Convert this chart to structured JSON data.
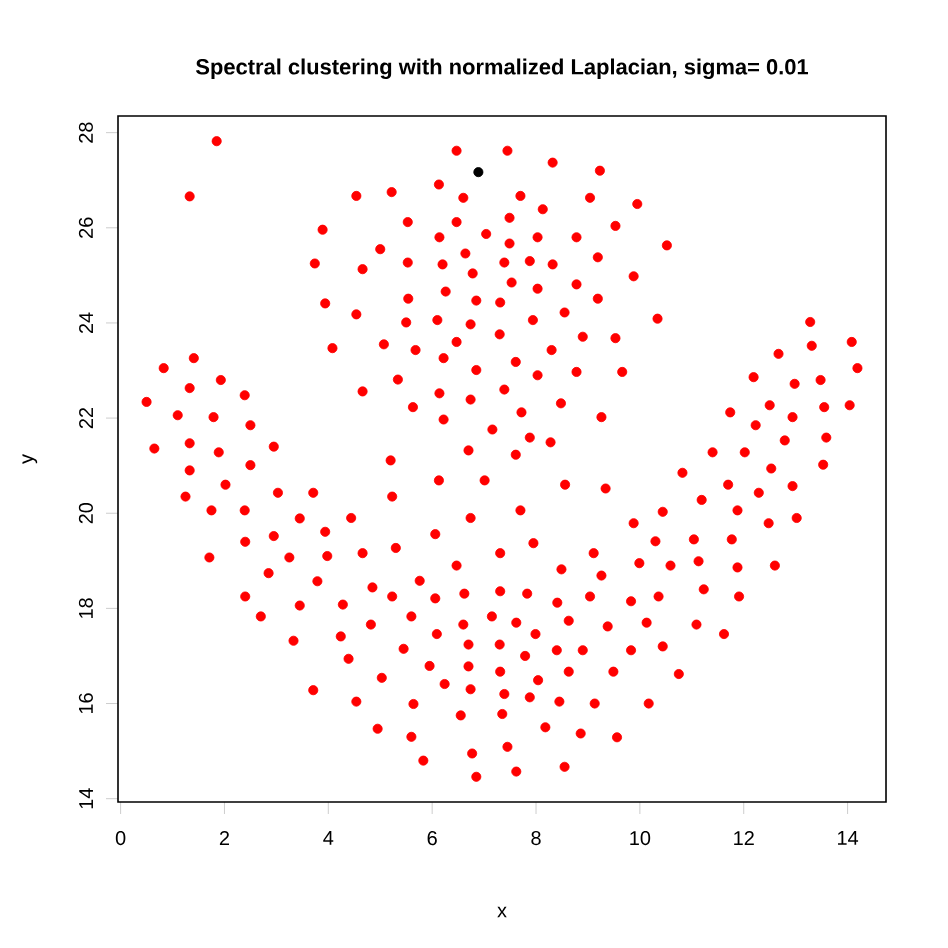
{
  "chart_data": {
    "type": "scatter",
    "title": "Spectral clustering with normalized Laplacian, sigma= 0.01",
    "xlabel": "x",
    "ylabel": "y",
    "xlim": [
      -0.05,
      14.74
    ],
    "ylim": [
      13.93,
      28.35
    ],
    "xticks": [
      0,
      2,
      4,
      6,
      8,
      10,
      12,
      14
    ],
    "yticks": [
      14,
      16,
      18,
      20,
      22,
      24,
      26,
      28
    ],
    "marker": "circle",
    "series": [
      {
        "color": "#ff0000",
        "x": [
          1.85,
          1.33,
          3.89,
          3.74,
          3.94,
          4.08,
          0.83,
          1.41,
          1.93,
          1.33,
          2.39,
          0.5,
          1.1,
          1.79,
          2.5,
          0.65,
          1.33,
          1.89,
          2.95,
          1.33,
          2.5,
          1.25,
          2.02,
          3.03,
          3.71,
          1.75,
          2.39,
          3.45,
          3.94,
          2.4,
          2.95,
          1.71,
          3.25,
          3.98,
          2.85,
          3.79,
          2.4,
          3.45,
          2.7,
          3.33,
          3.71,
          6.47,
          7.45,
          8.32,
          9.23,
          4.54,
          5.22,
          6.13,
          6.6,
          7.7,
          8.13,
          9.04,
          5.53,
          6.47,
          7.49,
          9.53,
          6.14,
          7.04,
          7.49,
          8.03,
          8.78,
          5.0,
          6.64,
          4.66,
          5.53,
          6.2,
          6.78,
          7.39,
          7.88,
          8.32,
          9.19,
          7.53,
          6.26,
          8.03,
          8.78,
          5.54,
          6.85,
          7.31,
          9.19,
          4.54,
          8.55,
          5.5,
          6.1,
          6.74,
          7.94,
          5.07,
          5.68,
          6.47,
          7.3,
          8.9,
          9.53,
          6.22,
          8.3,
          7.61,
          6.85,
          8.03,
          8.78,
          9.66,
          5.34,
          4.66,
          6.14,
          6.74,
          7.39,
          8.48,
          5.63,
          6.22,
          7.72,
          9.26,
          7.16,
          7.88,
          8.28,
          6.7,
          7.61,
          5.2,
          9.95,
          10.52,
          9.88,
          10.34,
          13.28,
          14.08,
          12.67,
          13.31,
          14.19,
          12.19,
          12.98,
          13.48,
          11.74,
          12.5,
          12.94,
          13.55,
          14.04,
          12.23,
          12.79,
          13.59,
          11.4,
          12.02,
          12.53,
          13.53,
          10.82,
          11.7,
          12.94,
          11.19,
          10.44,
          11.88,
          12.29,
          12.48,
          13.02,
          9.88,
          10.3,
          11.04,
          11.77,
          9.99,
          10.59,
          11.13,
          11.88,
          12.6,
          9.83,
          10.36,
          11.23,
          11.91,
          10.13,
          11.09,
          11.62,
          9.83,
          10.44,
          10.75,
          10.17,
          6.13,
          7.01,
          8.56,
          9.34,
          5.23,
          4.44,
          6.74,
          7.7,
          6.06,
          5.3,
          7.95,
          4.66,
          7.31,
          9.11,
          6.47,
          8.49,
          9.26,
          5.76,
          4.85,
          5.23,
          6.06,
          6.62,
          7.31,
          7.83,
          8.41,
          9.04,
          4.28,
          5.6,
          7.15,
          7.62,
          8.63,
          4.82,
          6.6,
          9.38,
          4.24,
          6.09,
          7.99,
          6.7,
          7.3,
          5.45,
          8.4,
          8.9,
          4.39,
          7.79,
          5.95,
          6.7,
          7.31,
          8.63,
          9.49,
          5.03,
          6.24,
          6.74,
          8.04,
          7.39,
          7.88,
          4.54,
          5.64,
          8.45,
          9.13,
          6.55,
          7.35,
          4.95,
          5.6,
          8.18,
          8.86,
          9.56,
          7.45,
          6.77,
          5.83,
          8.55,
          7.62,
          6.85
        ],
        "values": [
          27.82,
          26.66,
          25.96,
          25.25,
          24.41,
          23.47,
          23.05,
          23.26,
          22.8,
          22.63,
          22.48,
          22.34,
          22.06,
          22.02,
          21.85,
          21.36,
          21.47,
          21.28,
          21.4,
          20.9,
          21.01,
          20.35,
          20.6,
          20.43,
          20.43,
          20.06,
          20.06,
          19.89,
          19.61,
          19.4,
          19.52,
          19.07,
          19.07,
          19.1,
          18.74,
          18.57,
          18.25,
          18.06,
          17.83,
          17.32,
          16.28,
          27.62,
          27.62,
          27.37,
          27.2,
          26.67,
          26.75,
          26.91,
          26.63,
          26.67,
          26.39,
          26.63,
          26.12,
          26.12,
          26.21,
          26.04,
          25.8,
          25.87,
          25.67,
          25.8,
          25.8,
          25.55,
          25.46,
          25.13,
          25.27,
          25.23,
          25.04,
          25.27,
          25.3,
          25.23,
          25.38,
          24.85,
          24.66,
          24.72,
          24.81,
          24.51,
          24.47,
          24.43,
          24.51,
          24.18,
          24.22,
          24.01,
          24.06,
          23.97,
          24.06,
          23.55,
          23.43,
          23.6,
          23.76,
          23.71,
          23.68,
          23.26,
          23.43,
          23.18,
          23.01,
          22.9,
          22.97,
          22.97,
          22.81,
          22.56,
          22.52,
          22.39,
          22.6,
          22.31,
          22.23,
          21.97,
          22.12,
          22.02,
          21.76,
          21.59,
          21.49,
          21.32,
          21.23,
          21.11,
          26.5,
          25.63,
          24.98,
          24.09,
          24.02,
          23.6,
          23.35,
          23.52,
          23.05,
          22.86,
          22.72,
          22.8,
          22.12,
          22.27,
          22.02,
          22.23,
          22.27,
          21.85,
          21.53,
          21.59,
          21.28,
          21.28,
          20.94,
          21.02,
          20.85,
          20.6,
          20.57,
          20.28,
          20.03,
          20.06,
          20.43,
          19.79,
          19.9,
          19.79,
          19.41,
          19.45,
          19.45,
          18.95,
          18.9,
          18.99,
          18.86,
          18.9,
          18.15,
          18.25,
          18.4,
          18.25,
          17.7,
          17.66,
          17.46,
          17.12,
          17.2,
          16.62,
          16.0,
          20.69,
          20.69,
          20.6,
          20.52,
          20.35,
          19.9,
          19.9,
          20.06,
          19.56,
          19.27,
          19.37,
          19.16,
          19.16,
          19.16,
          18.9,
          18.82,
          18.69,
          18.58,
          18.44,
          18.25,
          18.21,
          18.31,
          18.36,
          18.31,
          18.12,
          18.25,
          18.08,
          17.83,
          17.83,
          17.7,
          17.74,
          17.66,
          17.66,
          17.62,
          17.41,
          17.46,
          17.46,
          17.24,
          17.24,
          17.15,
          17.12,
          17.12,
          16.94,
          17.0,
          16.79,
          16.78,
          16.67,
          16.67,
          16.67,
          16.54,
          16.41,
          16.3,
          16.49,
          16.2,
          16.13,
          16.04,
          15.99,
          16.04,
          16.0,
          15.75,
          15.78,
          15.47,
          15.3,
          15.5,
          15.37,
          15.29,
          15.09,
          14.95,
          14.8,
          14.67,
          14.57,
          14.46
        ]
      },
      {
        "color": "#000000",
        "x": [
          6.89
        ],
        "values": [
          27.17
        ]
      }
    ]
  }
}
